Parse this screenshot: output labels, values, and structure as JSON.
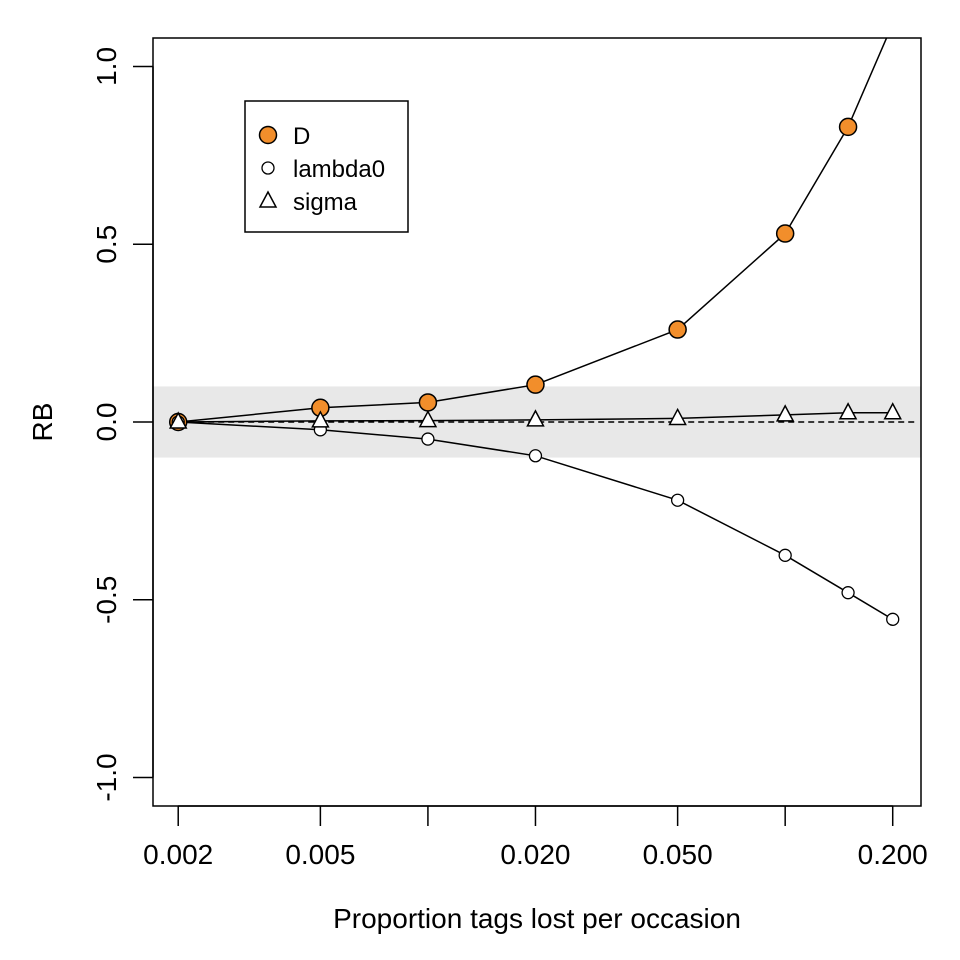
{
  "chart_data": {
    "type": "line",
    "xlabel": "Proportion tags lost per occasion",
    "ylabel": "RB",
    "x_scale": "log",
    "xlim": [
      0.0017,
      0.24
    ],
    "ylim": [
      -1.08,
      1.08
    ],
    "x_ticks": [
      0.002,
      0.005,
      0.01,
      0.02,
      0.05,
      0.1,
      0.2
    ],
    "x_tick_labels": [
      "0.002",
      "0.005",
      "",
      "0.020",
      "0.050",
      "",
      "0.200"
    ],
    "y_ticks": [
      -1.0,
      -0.5,
      0.0,
      0.5,
      1.0
    ],
    "y_tick_labels": [
      "-1.0",
      "-0.5",
      "0.0",
      "0.5",
      "1.0"
    ],
    "band": [
      -0.1,
      0.1
    ],
    "band_color": "#e8e8e8",
    "reference_line": 0,
    "grid": false,
    "legend_position": "top-left",
    "x": [
      0.002,
      0.005,
      0.01,
      0.02,
      0.05,
      0.1,
      0.15,
      0.2
    ],
    "series": [
      {
        "name": "D",
        "marker": "circle",
        "fill": "#f28e2b",
        "values": [
          0.0,
          0.04,
          0.055,
          0.105,
          0.26,
          0.53,
          0.83,
          1.12
        ]
      },
      {
        "name": "lambda0",
        "marker": "circle-small",
        "fill": "#ffffff",
        "values": [
          0.0,
          -0.022,
          -0.048,
          -0.095,
          -0.22,
          -0.375,
          -0.48,
          -0.555
        ]
      },
      {
        "name": "sigma",
        "marker": "triangle",
        "fill": "#ffffff",
        "values": [
          0.0,
          0.003,
          0.004,
          0.006,
          0.01,
          0.02,
          0.026,
          0.026
        ]
      }
    ]
  }
}
